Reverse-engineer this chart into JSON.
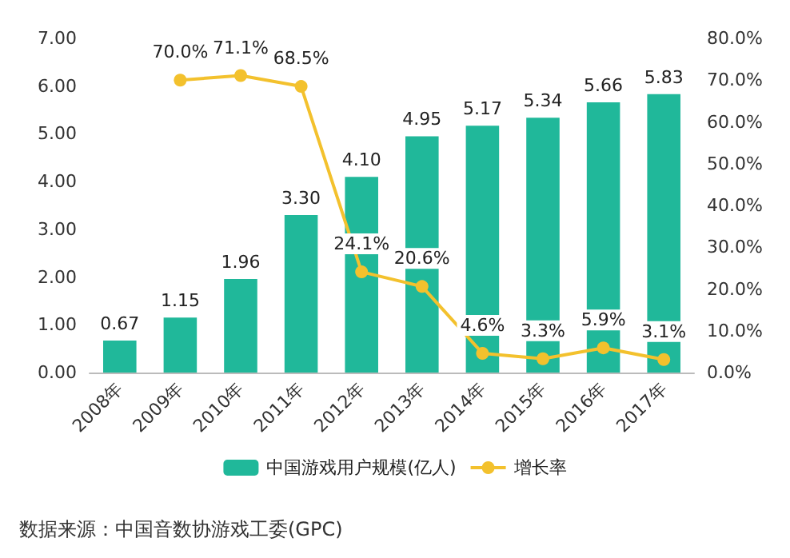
{
  "chart_data": {
    "type": "bar",
    "categories": [
      "2008年",
      "2009年",
      "2010年",
      "2011年",
      "2012年",
      "2013年",
      "2014年",
      "2015年",
      "2016年",
      "2017年"
    ],
    "series": [
      {
        "name": "中国游戏用户规模(亿人)",
        "color": "#20b89a",
        "values": [
          0.67,
          1.15,
          1.96,
          3.3,
          4.1,
          4.95,
          5.17,
          5.34,
          5.66,
          5.83
        ],
        "value_labels": [
          "0.67",
          "1.15",
          "1.96",
          "3.30",
          "4.10",
          "4.95",
          "5.17",
          "5.34",
          "5.66",
          "5.83"
        ]
      },
      {
        "name": "增长率",
        "type": "line",
        "axis": "y2",
        "color": "#f3c12d",
        "marker": "circle",
        "values": [
          null,
          70.0,
          71.1,
          68.5,
          24.1,
          20.6,
          4.6,
          3.3,
          5.9,
          3.1
        ],
        "value_labels": [
          null,
          "70.0%",
          "71.1%",
          "68.5%",
          "24.1%",
          "20.6%",
          "4.6%",
          "3.3%",
          "5.9%",
          "3.1%"
        ]
      }
    ],
    "ylim": [
      0,
      7
    ],
    "yticks": [
      {
        "value": 0,
        "label": "0.00"
      },
      {
        "value": 1,
        "label": "1.00"
      },
      {
        "value": 2,
        "label": "2.00"
      },
      {
        "value": 3,
        "label": "3.00"
      },
      {
        "value": 4,
        "label": "4.00"
      },
      {
        "value": 5,
        "label": "5.00"
      },
      {
        "value": 6,
        "label": "6.00"
      },
      {
        "value": 7,
        "label": "7.00"
      }
    ],
    "y2lim": [
      0,
      80
    ],
    "y2ticks": [
      {
        "value": 0,
        "label": "0.0%"
      },
      {
        "value": 10,
        "label": "10.0%"
      },
      {
        "value": 20,
        "label": "20.0%"
      },
      {
        "value": 30,
        "label": "30.0%"
      },
      {
        "value": 40,
        "label": "40.0%"
      },
      {
        "value": 50,
        "label": "50.0%"
      },
      {
        "value": 60,
        "label": "60.0%"
      },
      {
        "value": 70,
        "label": "70.0%"
      },
      {
        "value": 80,
        "label": "80.0%"
      }
    ],
    "grid": false,
    "legend": "bottom",
    "annotations": [
      "数据来源：中国音数协游戏工委(GPC)"
    ]
  }
}
